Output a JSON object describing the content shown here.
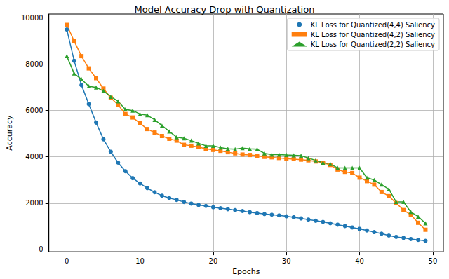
{
  "chart_data": {
    "type": "line",
    "title": "Model Accuracy Drop with Quantization",
    "x_label": "Epochs",
    "y_label": "Accuracy",
    "x": [
      0,
      1,
      2,
      3,
      4,
      5,
      6,
      7,
      8,
      9,
      10,
      11,
      12,
      13,
      14,
      15,
      16,
      17,
      18,
      19,
      20,
      21,
      22,
      23,
      24,
      25,
      26,
      27,
      28,
      29,
      30,
      31,
      32,
      33,
      34,
      35,
      36,
      37,
      38,
      39,
      40,
      41,
      42,
      43,
      44,
      45,
      46,
      47,
      48,
      49
    ],
    "series": [
      {
        "name": "KL Loss for Quantized(4,4) Saliency",
        "color": "#1f77b4",
        "marker": "circle",
        "values": [
          9500,
          8150,
          7100,
          6280,
          5480,
          4760,
          4220,
          3750,
          3380,
          3080,
          2850,
          2650,
          2470,
          2320,
          2220,
          2140,
          2050,
          1980,
          1920,
          1880,
          1820,
          1780,
          1740,
          1700,
          1660,
          1610,
          1570,
          1530,
          1500,
          1470,
          1430,
          1390,
          1340,
          1290,
          1240,
          1190,
          1130,
          1070,
          1010,
          950,
          890,
          820,
          750,
          680,
          600,
          540,
          500,
          450,
          410,
          370
        ]
      },
      {
        "name": "KL Loss for Quantized(4,2) Saliency",
        "color": "#ff7f0e",
        "marker": "square",
        "values": [
          9700,
          9000,
          8350,
          7820,
          7400,
          6950,
          6550,
          6250,
          5850,
          5700,
          5450,
          5200,
          5050,
          4900,
          4780,
          4700,
          4520,
          4480,
          4420,
          4350,
          4300,
          4260,
          4200,
          4150,
          4100,
          4080,
          4050,
          4000,
          3980,
          3950,
          3920,
          3900,
          3880,
          3850,
          3800,
          3750,
          3650,
          3450,
          3350,
          3300,
          3100,
          2950,
          2800,
          2480,
          2300,
          2000,
          1700,
          1500,
          1150,
          850
        ]
      },
      {
        "name": "KL Loss for Quantized(2,2) Saliency",
        "color": "#2ca02c",
        "marker": "triangle",
        "values": [
          8350,
          7600,
          7350,
          7050,
          7000,
          6850,
          6600,
          6400,
          6050,
          6000,
          5850,
          5800,
          5600,
          5350,
          5100,
          4850,
          4800,
          4700,
          4580,
          4480,
          4480,
          4400,
          4350,
          4330,
          4380,
          4350,
          4330,
          4150,
          4100,
          4100,
          4080,
          4070,
          4050,
          3950,
          3850,
          3750,
          3700,
          3520,
          3520,
          3520,
          3520,
          3100,
          3000,
          2800,
          2600,
          2050,
          2050,
          1620,
          1420,
          1130
        ]
      }
    ],
    "xlim": [
      -2.45,
      51.45
    ],
    "xticks": [
      0,
      10,
      20,
      30,
      40,
      50
    ],
    "ylim": [
      -100,
      10170
    ],
    "yticks": [
      0,
      2000,
      4000,
      6000,
      8000,
      10000
    ],
    "grid": true,
    "legend": "upper right"
  }
}
